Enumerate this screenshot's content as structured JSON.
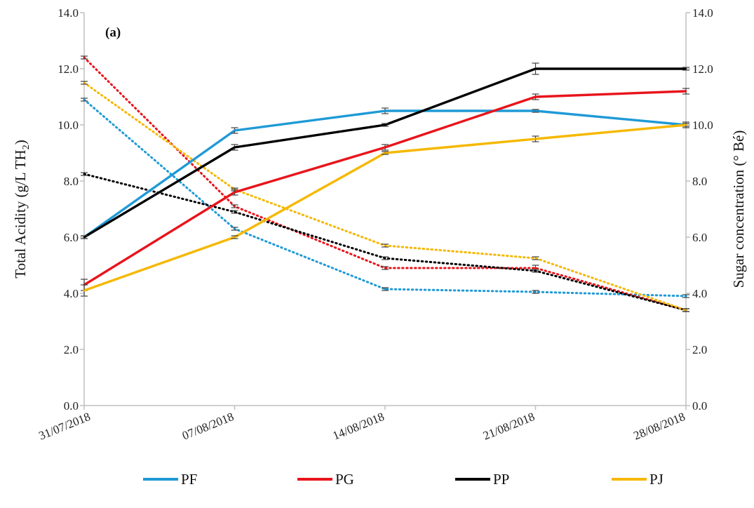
{
  "chart_data": {
    "type": "line",
    "panel_label": "(a)",
    "ylabel_left": "Total Acidity (g/L TH",
    "ylabel_left_sub": "2",
    "ylabel_left_end": ")",
    "ylabel_right": "Sugar concentration (° Bé)",
    "ylim_left": [
      0,
      14
    ],
    "ylim_right": [
      0,
      14
    ],
    "yticks": [
      "0.0",
      "2.0",
      "4.0",
      "6.0",
      "8.0",
      "10.0",
      "12.0",
      "14.0"
    ],
    "x_tick_labels": [
      "31/07/2018",
      "07/08/2018",
      "14/08/2018",
      "21/08/2018",
      "28/08/2018"
    ],
    "x": [
      "2018-07-31",
      "2018-08-07",
      "2018-08-14",
      "2018-08-21",
      "2018-08-28"
    ],
    "x_pos": [
      0,
      1,
      2,
      3,
      4
    ],
    "xlim": [
      0,
      4
    ],
    "grid": false,
    "legend_position": "bottom",
    "colors": {
      "PF": "#1f9ad6",
      "PG": "#e8141b",
      "PP": "#000000",
      "PJ": "#f5b800"
    },
    "series": [
      {
        "name": "PF",
        "kind": "acidity",
        "style": "solid",
        "values": [
          6.0,
          9.8,
          10.5,
          10.5,
          10.0
        ],
        "err": [
          0.05,
          0.1,
          0.1,
          0.05,
          0.05
        ]
      },
      {
        "name": "PG",
        "kind": "acidity",
        "style": "solid",
        "values": [
          4.3,
          7.6,
          9.2,
          11.0,
          11.2
        ],
        "err": [
          0.2,
          0.1,
          0.1,
          0.1,
          0.1
        ]
      },
      {
        "name": "PP",
        "kind": "acidity",
        "style": "solid",
        "values": [
          6.0,
          9.2,
          10.0,
          12.0,
          12.0
        ],
        "err": [
          0.05,
          0.1,
          0.05,
          0.2,
          0.05
        ]
      },
      {
        "name": "PJ",
        "kind": "acidity",
        "style": "solid",
        "values": [
          4.1,
          6.0,
          9.0,
          9.5,
          10.0
        ],
        "err": [
          0.2,
          0.05,
          0.05,
          0.1,
          0.1
        ]
      },
      {
        "name": "PF",
        "kind": "sugar",
        "style": "dotted",
        "values": [
          10.9,
          6.3,
          4.15,
          4.05,
          3.9
        ],
        "err": [
          0.05,
          0.05,
          0.05,
          0.05,
          0.05
        ]
      },
      {
        "name": "PG",
        "kind": "sugar",
        "style": "dotted",
        "values": [
          12.4,
          7.1,
          4.9,
          4.9,
          3.4
        ],
        "err": [
          0.05,
          0.05,
          0.05,
          0.1,
          0.05
        ]
      },
      {
        "name": "PP",
        "kind": "sugar",
        "style": "dotted",
        "values": [
          8.25,
          6.9,
          5.25,
          4.8,
          3.4
        ],
        "err": [
          0.05,
          0.05,
          0.05,
          0.05,
          0.05
        ]
      },
      {
        "name": "PJ",
        "kind": "sugar",
        "style": "dotted",
        "values": [
          11.5,
          7.7,
          5.7,
          5.25,
          3.4
        ],
        "err": [
          0.05,
          0.05,
          0.05,
          0.05,
          0.05
        ]
      }
    ],
    "legend": [
      "PF",
      "PG",
      "PP",
      "PJ"
    ]
  }
}
